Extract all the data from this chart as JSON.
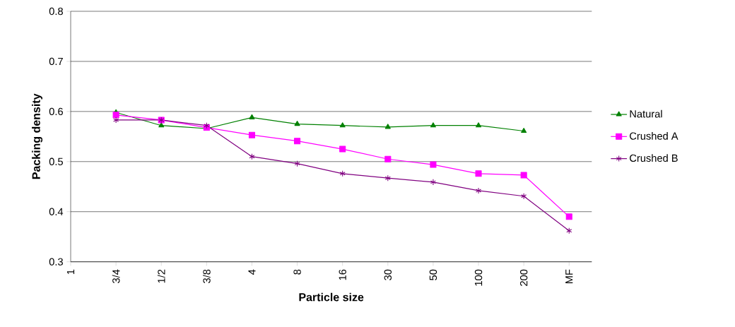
{
  "chart_data": {
    "type": "line",
    "xlabel": "Particle size",
    "ylabel": "Packing density",
    "categories": [
      "1",
      "3/4",
      "1/2",
      "3/8",
      "4",
      "8",
      "16",
      "30",
      "50",
      "100",
      "200",
      "MF"
    ],
    "series": [
      {
        "name": "Natural",
        "color": "#008000",
        "marker": "triangle",
        "values": [
          null,
          0.598,
          0.572,
          0.566,
          0.588,
          0.575,
          0.572,
          0.569,
          0.572,
          0.572,
          0.561,
          null
        ]
      },
      {
        "name": "Crushed A",
        "color": "#ff00ff",
        "marker": "square",
        "values": [
          null,
          0.593,
          0.583,
          0.568,
          0.553,
          0.541,
          0.525,
          0.505,
          0.494,
          0.476,
          0.473,
          0.39
        ]
      },
      {
        "name": "Crushed B",
        "color": "#800080",
        "marker": "cross",
        "values": [
          null,
          0.583,
          0.583,
          0.572,
          0.51,
          0.496,
          0.476,
          0.467,
          0.459,
          0.442,
          0.431,
          0.362
        ]
      }
    ],
    "ylim": [
      0.3,
      0.8
    ],
    "yticks": [
      0.3,
      0.4,
      0.5,
      0.6,
      0.7,
      0.8
    ],
    "grid": "y",
    "legend": "right"
  }
}
